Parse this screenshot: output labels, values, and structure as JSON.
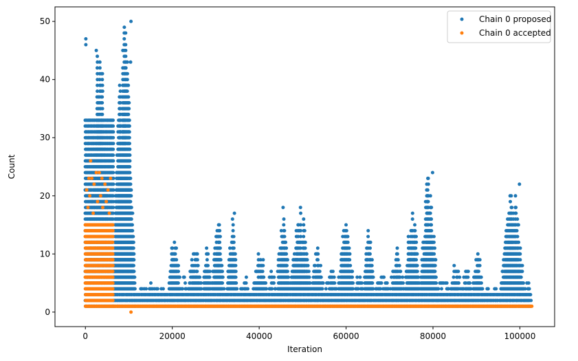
{
  "chart_data": {
    "type": "scatter",
    "xlabel": "Iteration",
    "ylabel": "Count",
    "xlim": [
      -7000,
      108000
    ],
    "ylim": [
      -2.5,
      52.5
    ],
    "x_ticks": [
      0,
      20000,
      40000,
      60000,
      80000,
      100000
    ],
    "y_ticks": [
      0,
      10,
      20,
      30,
      40,
      50
    ],
    "grid": false,
    "legend_position": "top-right",
    "series": [
      {
        "name": "Chain 0 proposed",
        "color": "#1f77b4",
        "marker": "circle",
        "bands": [
          {
            "x_start": 0,
            "x_end": 6500,
            "y_min": 1,
            "y_max": 33,
            "step": 200
          },
          {
            "x_start": 6500,
            "x_end": 102500,
            "y_min": 1,
            "y_max": 3,
            "step": 250
          }
        ],
        "peaks": [
          {
            "x_start": 0,
            "x_end": 6300,
            "height": 47,
            "step": 300
          },
          {
            "x_start": 6300,
            "x_end": 11500,
            "height": 50,
            "step": 80
          },
          {
            "x_start": 11500,
            "x_end": 19000,
            "height": 5,
            "step": 400
          },
          {
            "x_start": 19000,
            "x_end": 22000,
            "height": 14,
            "step": 150
          },
          {
            "x_start": 22000,
            "x_end": 23500,
            "height": 6,
            "step": 200
          },
          {
            "x_start": 23500,
            "x_end": 27000,
            "height": 11,
            "step": 150
          },
          {
            "x_start": 27000,
            "x_end": 29000,
            "height": 12,
            "step": 150
          },
          {
            "x_start": 29000,
            "x_end": 32000,
            "height": 17,
            "step": 120
          },
          {
            "x_start": 32500,
            "x_end": 35000,
            "height": 17,
            "step": 150
          },
          {
            "x_start": 35000,
            "x_end": 38500,
            "height": 6,
            "step": 200
          },
          {
            "x_start": 38500,
            "x_end": 42000,
            "height": 11,
            "step": 150
          },
          {
            "x_start": 42000,
            "x_end": 44000,
            "height": 8,
            "step": 200
          },
          {
            "x_start": 44000,
            "x_end": 47000,
            "height": 18,
            "step": 150
          },
          {
            "x_start": 47000,
            "x_end": 52000,
            "height": 18,
            "step": 120
          },
          {
            "x_start": 52000,
            "x_end": 55000,
            "height": 11,
            "step": 150
          },
          {
            "x_start": 55000,
            "x_end": 58000,
            "height": 8,
            "step": 200
          },
          {
            "x_start": 58000,
            "x_end": 62000,
            "height": 17,
            "step": 150
          },
          {
            "x_start": 62000,
            "x_end": 64000,
            "height": 7,
            "step": 200
          },
          {
            "x_start": 64000,
            "x_end": 66500,
            "height": 15,
            "step": 150
          },
          {
            "x_start": 66500,
            "x_end": 70000,
            "height": 7,
            "step": 200
          },
          {
            "x_start": 70000,
            "x_end": 73500,
            "height": 11,
            "step": 150
          },
          {
            "x_start": 73500,
            "x_end": 77000,
            "height": 18,
            "step": 120
          },
          {
            "x_start": 77000,
            "x_end": 81000,
            "height": 24,
            "step": 120
          },
          {
            "x_start": 81000,
            "x_end": 84000,
            "height": 6,
            "step": 200
          },
          {
            "x_start": 84000,
            "x_end": 86500,
            "height": 9,
            "step": 150
          },
          {
            "x_start": 86500,
            "x_end": 89000,
            "height": 8,
            "step": 200
          },
          {
            "x_start": 89000,
            "x_end": 91500,
            "height": 11,
            "step": 150
          },
          {
            "x_start": 91500,
            "x_end": 95500,
            "height": 4,
            "step": 300
          },
          {
            "x_start": 95500,
            "x_end": 101000,
            "height": 22,
            "step": 120
          },
          {
            "x_start": 101000,
            "x_end": 102500,
            "height": 6,
            "step": 200
          }
        ],
        "outliers": [
          {
            "x": 10500,
            "y": 50
          },
          {
            "x": 100,
            "y": 47
          },
          {
            "x": 100,
            "y": 46
          },
          {
            "x": 2500,
            "y": 45
          },
          {
            "x": 10400,
            "y": 43
          },
          {
            "x": 79900,
            "y": 24
          },
          {
            "x": 99900,
            "y": 22
          },
          {
            "x": 34300,
            "y": 17
          },
          {
            "x": 45500,
            "y": 18
          },
          {
            "x": 49500,
            "y": 18
          }
        ]
      },
      {
        "name": "Chain 0 accepted",
        "color": "#ff7f0e",
        "marker": "circle",
        "bands": [
          {
            "x_start": 0,
            "x_end": 6300,
            "y_min": 1,
            "y_max": 15,
            "step": 150
          },
          {
            "x_start": 6300,
            "x_end": 102800,
            "y_min": 1,
            "y_max": 1,
            "step": 150
          }
        ],
        "outliers": [
          {
            "x": 1200,
            "y": 26
          },
          {
            "x": 2500,
            "y": 24
          },
          {
            "x": 3200,
            "y": 24
          },
          {
            "x": 800,
            "y": 23
          },
          {
            "x": 1500,
            "y": 23
          },
          {
            "x": 3800,
            "y": 23
          },
          {
            "x": 5800,
            "y": 23
          },
          {
            "x": 2000,
            "y": 22
          },
          {
            "x": 4500,
            "y": 22
          },
          {
            "x": 300,
            "y": 21
          },
          {
            "x": 5200,
            "y": 21
          },
          {
            "x": 1000,
            "y": 20
          },
          {
            "x": 3500,
            "y": 20
          },
          {
            "x": 2800,
            "y": 19
          },
          {
            "x": 4800,
            "y": 19
          },
          {
            "x": 600,
            "y": 18
          },
          {
            "x": 4000,
            "y": 18
          },
          {
            "x": 1800,
            "y": 17
          },
          {
            "x": 5500,
            "y": 17
          },
          {
            "x": 10500,
            "y": 0
          }
        ]
      }
    ]
  }
}
